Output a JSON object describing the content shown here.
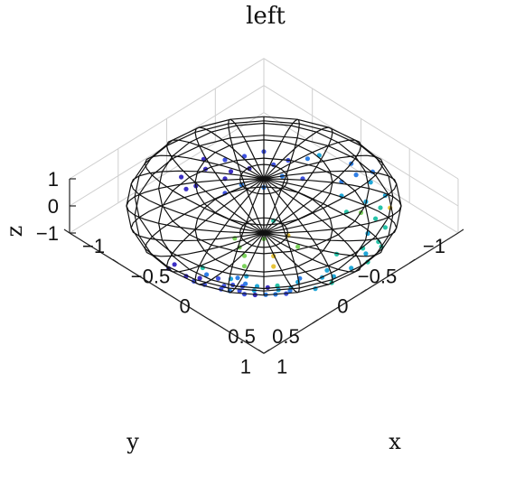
{
  "chart_data": {
    "type": "scatter",
    "title": "left",
    "xlabel": "x",
    "ylabel": "y",
    "zlabel": "z",
    "xlim": [
      -1,
      1
    ],
    "ylim": [
      -1,
      1
    ],
    "zlim": [
      -1,
      1
    ],
    "x_ticks": [
      -1,
      -0.5,
      0,
      0.5,
      1
    ],
    "y_ticks": [
      -1,
      -0.5,
      0,
      0.5,
      1
    ],
    "z_ticks": [
      -1,
      0,
      1
    ],
    "x_tick_labels": [
      "−1",
      "−0.5",
      "0",
      "0.5",
      "1"
    ],
    "y_tick_labels": [
      "−1",
      "−0.5",
      "0",
      "0.5",
      "1"
    ],
    "z_tick_labels": [
      "−1",
      "0",
      "1"
    ],
    "view": "top-down (azimuth 45°)",
    "overlay": "unit sphere wireframe",
    "grid": true,
    "colormap": [
      "#3b2ec4",
      "#3f52e0",
      "#2f7fe6",
      "#21a7d8",
      "#27c3a8",
      "#7cd35c",
      "#e7c43a"
    ],
    "series": [
      {
        "points": [
          [
            0.76,
            0.53,
            -0.37
          ],
          [
            0.33,
            0.74,
            -0.58
          ],
          [
            0.55,
            0.51,
            -0.66
          ],
          [
            0.18,
            0.9,
            -0.38
          ],
          [
            0.46,
            0.71,
            -0.53
          ],
          [
            0.29,
            0.56,
            -0.77
          ],
          [
            0.62,
            0.71,
            -0.33
          ],
          [
            0.31,
            0.49,
            -0.82
          ],
          [
            0.41,
            0.63,
            -0.66
          ],
          [
            0.7,
            0.58,
            -0.42
          ],
          [
            0.14,
            0.8,
            -0.58
          ],
          [
            0.52,
            0.62,
            -0.59
          ],
          [
            0.21,
            0.68,
            -0.7
          ],
          [
            0.37,
            0.81,
            -0.45
          ],
          [
            0.58,
            0.44,
            -0.68
          ],
          [
            -0.05,
            0.93,
            -0.36
          ],
          [
            0.12,
            0.71,
            -0.69
          ],
          [
            0.25,
            0.86,
            -0.44
          ],
          [
            0.48,
            0.55,
            -0.68
          ],
          [
            0.66,
            0.64,
            -0.39
          ],
          [
            -0.1,
            0.82,
            -0.56
          ],
          [
            0.03,
            0.66,
            -0.75
          ],
          [
            0.35,
            0.67,
            -0.65
          ],
          [
            0.57,
            0.77,
            -0.28
          ],
          [
            0.43,
            0.78,
            -0.45
          ],
          [
            0.72,
            0.45,
            -0.53
          ],
          [
            0.08,
            0.88,
            -0.46
          ],
          [
            0.27,
            0.61,
            -0.74
          ],
          [
            0.64,
            0.49,
            -0.59
          ],
          [
            0.39,
            0.58,
            -0.72
          ]
        ],
        "values": [
          0.1,
          0.15,
          0.05,
          0.2,
          0.12,
          0.25,
          0.08,
          0.55,
          0.18,
          0.3,
          0.02,
          0.42,
          0.22,
          0.14,
          0.65,
          0.06,
          0.35,
          0.11,
          0.48,
          0.28,
          0.03,
          0.6,
          0.17,
          0.09,
          0.26,
          0.38,
          0.07,
          0.45,
          0.52,
          0.33
        ]
      },
      {
        "points": [
          [
            -0.6,
            -0.2,
            -0.77
          ],
          [
            -0.45,
            -0.55,
            -0.7
          ],
          [
            -0.7,
            0.1,
            -0.71
          ],
          [
            -0.3,
            -0.75,
            -0.59
          ],
          [
            -0.55,
            -0.4,
            -0.73
          ],
          [
            -0.75,
            -0.15,
            -0.64
          ],
          [
            -0.2,
            -0.6,
            -0.77
          ],
          [
            -0.5,
            -0.1,
            -0.86
          ],
          [
            -0.65,
            -0.45,
            -0.61
          ],
          [
            -0.35,
            -0.35,
            -0.87
          ],
          [
            -0.8,
            0.05,
            -0.6
          ],
          [
            -0.4,
            -0.65,
            -0.65
          ],
          [
            -0.62,
            -0.28,
            -0.73
          ],
          [
            -0.25,
            -0.82,
            -0.51
          ],
          [
            -0.72,
            -0.32,
            -0.61
          ],
          [
            -0.48,
            -0.25,
            -0.84
          ],
          [
            -0.58,
            -0.58,
            -0.57
          ],
          [
            -0.82,
            -0.2,
            -0.54
          ],
          [
            -0.33,
            -0.52,
            -0.79
          ],
          [
            -0.68,
            0.02,
            -0.73
          ]
        ],
        "values": [
          0.05,
          0.12,
          0.02,
          0.3,
          0.08,
          0.04,
          0.22,
          0.1,
          0.15,
          0.4,
          0.03,
          0.18,
          0.07,
          0.5,
          0.09,
          0.25,
          0.14,
          0.06,
          0.35,
          0.01
        ]
      },
      {
        "points": [
          [
            0.1,
            -0.85,
            -0.52
          ],
          [
            0.35,
            -0.7,
            -0.62
          ],
          [
            0.55,
            -0.6,
            -0.58
          ],
          [
            0.2,
            -0.92,
            -0.34
          ],
          [
            0.45,
            -0.8,
            -0.39
          ],
          [
            0.05,
            -0.75,
            -0.66
          ],
          [
            0.3,
            -0.55,
            -0.78
          ],
          [
            0.62,
            -0.45,
            -0.64
          ],
          [
            0.15,
            -0.65,
            -0.74
          ],
          [
            0.5,
            -0.7,
            -0.51
          ],
          [
            0.25,
            -0.85,
            -0.46
          ],
          [
            0.4,
            -0.6,
            -0.69
          ],
          [
            0.7,
            -0.55,
            -0.46
          ],
          [
            0.0,
            -0.9,
            -0.44
          ],
          [
            0.58,
            -0.72,
            -0.38
          ]
        ],
        "values": [
          0.35,
          0.5,
          0.62,
          0.4,
          0.55,
          0.3,
          0.72,
          0.58,
          0.45,
          0.68,
          0.42,
          0.8,
          0.6,
          0.28,
          0.95
        ]
      },
      {
        "points": [
          [
            0.75,
            0.15,
            -0.64
          ],
          [
            0.85,
            -0.05,
            -0.52
          ],
          [
            0.65,
            0.3,
            -0.7
          ],
          [
            0.9,
            0.2,
            -0.39
          ],
          [
            0.8,
            -0.25,
            -0.54
          ],
          [
            0.7,
            0.05,
            -0.71
          ],
          [
            0.6,
            -0.15,
            -0.78
          ],
          [
            0.88,
            0.35,
            -0.32
          ],
          [
            0.78,
            -0.4,
            -0.48
          ],
          [
            0.68,
            0.4,
            -0.62
          ],
          [
            0.82,
            0.1,
            -0.56
          ],
          [
            0.92,
            -0.15,
            -0.36
          ],
          [
            0.72,
            -0.3,
            -0.63
          ],
          [
            0.62,
            0.25,
            -0.74
          ],
          [
            0.86,
            -0.35,
            -0.37
          ]
        ],
        "values": [
          0.5,
          0.58,
          0.45,
          0.62,
          0.55,
          0.48,
          0.7,
          0.52,
          0.6,
          0.42,
          0.56,
          0.65,
          0.66,
          0.4,
          0.61
        ]
      },
      {
        "points": [
          [
            0.05,
            0.05,
            -0.99
          ],
          [
            0.15,
            -0.1,
            -0.98
          ],
          [
            -0.1,
            0.2,
            -0.97
          ],
          [
            0.25,
            0.15,
            -0.96
          ],
          [
            0.1,
            0.3,
            -0.95
          ],
          [
            0.3,
            -0.05,
            -0.95
          ],
          [
            -0.05,
            -0.15,
            -0.99
          ],
          [
            0.2,
            0.4,
            -0.89
          ],
          [
            0.35,
            0.25,
            -0.9
          ],
          [
            0.0,
            0.25,
            -0.97
          ]
        ],
        "values": [
          0.88,
          0.92,
          0.75,
          0.96,
          0.82,
          0.9,
          0.7,
          0.86,
          0.94,
          0.78
        ]
      }
    ]
  }
}
